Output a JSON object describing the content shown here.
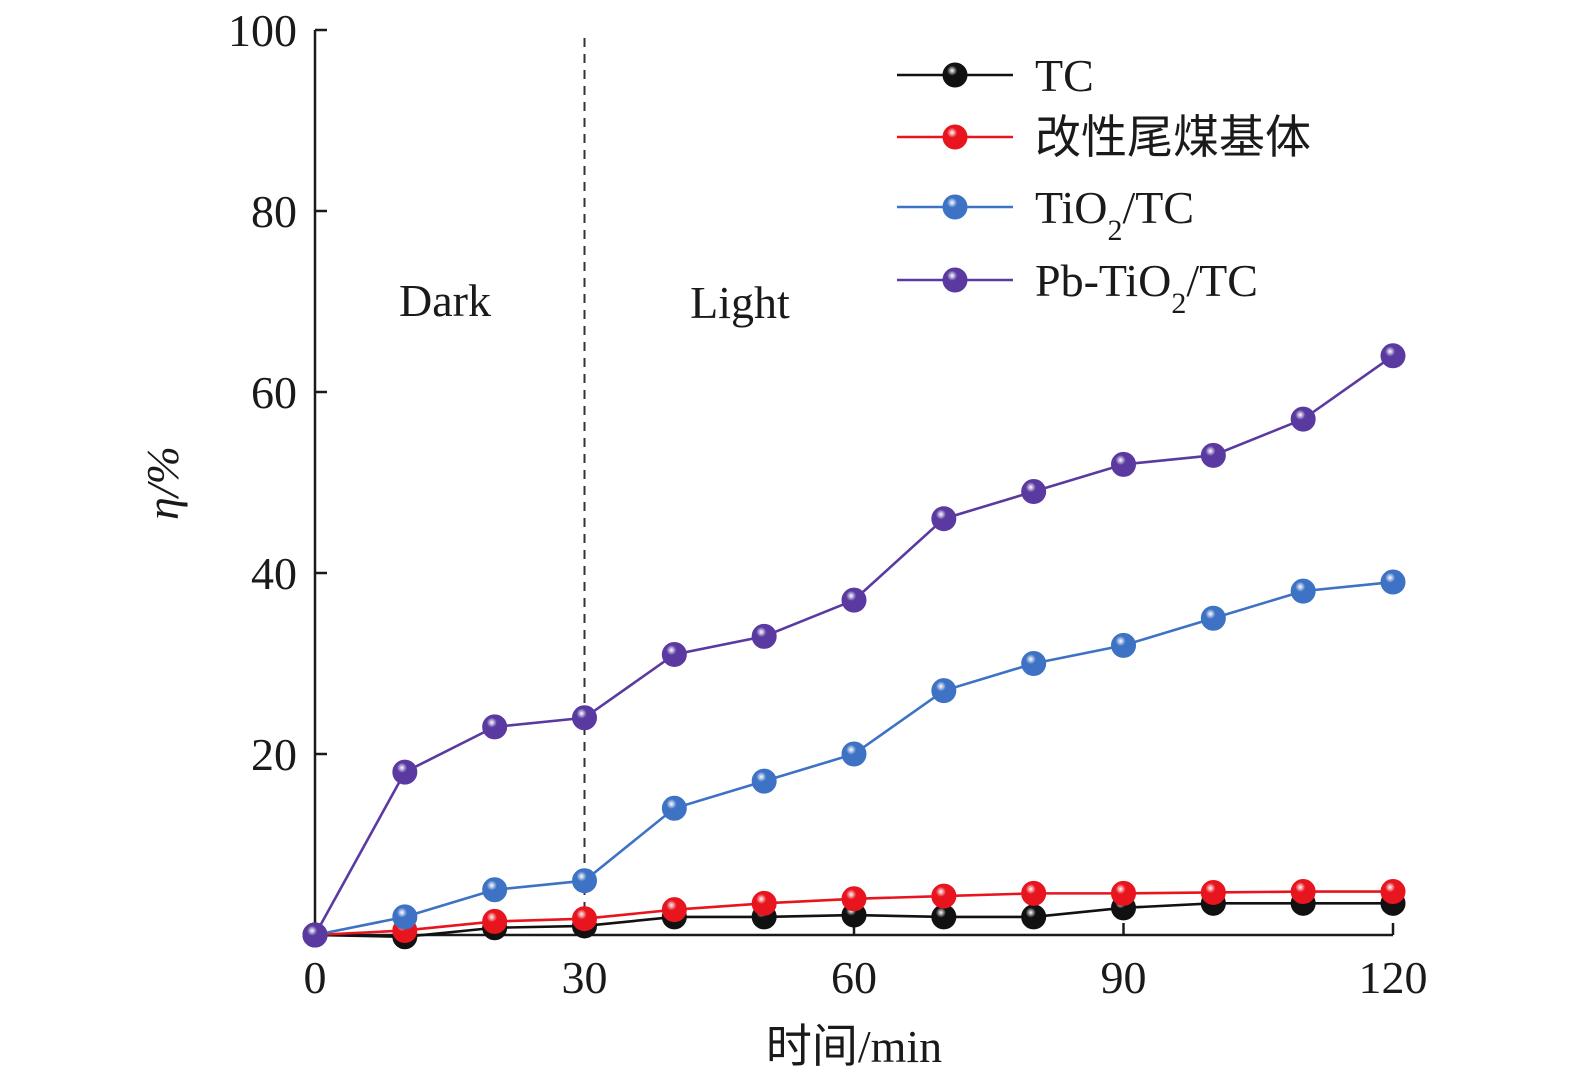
{
  "chart_data": {
    "type": "line",
    "xlabel": "时间/min",
    "ylabel": "η/%",
    "xlim": [
      0,
      120
    ],
    "ylim": [
      0,
      100
    ],
    "xticks": [
      "0",
      "30",
      "60",
      "90",
      "120"
    ],
    "yticks": [
      "20",
      "40",
      "60",
      "80",
      "100"
    ],
    "grid": false,
    "legend_position": "top-right",
    "annotations": {
      "dark": "Dark",
      "light": "Light",
      "divider_x": 30
    },
    "x": [
      0,
      10,
      20,
      30,
      40,
      50,
      60,
      70,
      80,
      90,
      100,
      110,
      120
    ],
    "series": [
      {
        "name": "TC",
        "name_parts": [
          "TC"
        ],
        "color": "#111111",
        "values": [
          0,
          -0.2,
          0.8,
          1.0,
          2.0,
          2.0,
          2.2,
          2.0,
          2.0,
          3.0,
          3.5,
          3.5,
          3.5
        ]
      },
      {
        "name": "改性尾煤基体",
        "name_parts": [
          "改性尾煤基体"
        ],
        "color": "#e8141e",
        "values": [
          0,
          0.5,
          1.5,
          1.8,
          2.8,
          3.5,
          4.0,
          4.3,
          4.6,
          4.6,
          4.7,
          4.8,
          4.8
        ]
      },
      {
        "name": "TiO2/TC",
        "name_parts": [
          "TiO",
          "2",
          "/TC"
        ],
        "color": "#3d72c4",
        "values": [
          0,
          2.0,
          5.0,
          6.0,
          14.0,
          17.0,
          20.0,
          27.0,
          30.0,
          32.0,
          35.0,
          38.0,
          39.0
        ]
      },
      {
        "name": "Pb-TiO2/TC",
        "name_parts": [
          "Pb-TiO",
          "2",
          "/TC"
        ],
        "color": "#5a3aa0",
        "values": [
          0,
          18.0,
          23.0,
          24.0,
          31.0,
          33.0,
          37.0,
          46.0,
          49.0,
          52.0,
          53.0,
          57.0,
          64.0
        ]
      }
    ]
  }
}
